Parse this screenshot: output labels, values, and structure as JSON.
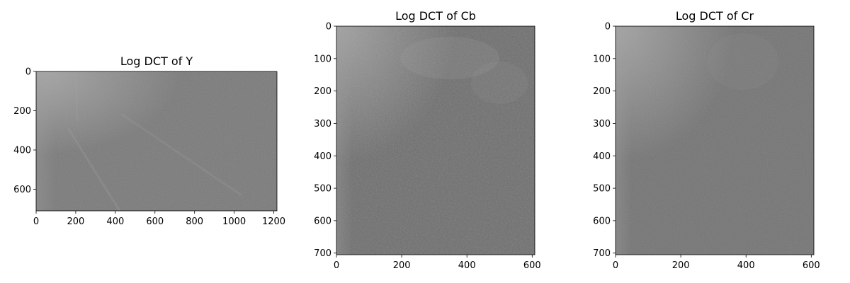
{
  "chart_data": [
    {
      "type": "heatmap",
      "title": "Log DCT of Y",
      "xlim": [
        0,
        1216
      ],
      "ylim": [
        0,
        710
      ],
      "y_inverted": true,
      "xticks": [
        0,
        200,
        400,
        600,
        800,
        1000,
        1200
      ],
      "yticks": [
        0,
        200,
        400,
        600
      ],
      "colormap": "gray",
      "base_shade": "#7a7a7a",
      "bright_corner": "top-left",
      "texture": "fine grain noise with faint diagonal streaks"
    },
    {
      "type": "heatmap",
      "title": "Log DCT of Cb",
      "xlim": [
        0,
        608
      ],
      "ylim": [
        0,
        705
      ],
      "y_inverted": true,
      "xticks": [
        0,
        200,
        400,
        600
      ],
      "yticks": [
        0,
        100,
        200,
        300,
        400,
        500,
        600,
        700
      ],
      "colormap": "gray",
      "base_shade": "#707070",
      "bright_corner": "top-left",
      "texture": "coarse noise with lighter blotches near the top"
    },
    {
      "type": "heatmap",
      "title": "Log DCT of Cr",
      "xlim": [
        0,
        608
      ],
      "ylim": [
        0,
        705
      ],
      "y_inverted": true,
      "xticks": [
        0,
        200,
        400,
        600
      ],
      "yticks": [
        0,
        100,
        200,
        300,
        400,
        500,
        600,
        700
      ],
      "colormap": "gray",
      "base_shade": "#747474",
      "bright_corner": "top-left",
      "texture": "fine noise with faint lighter patches"
    }
  ]
}
